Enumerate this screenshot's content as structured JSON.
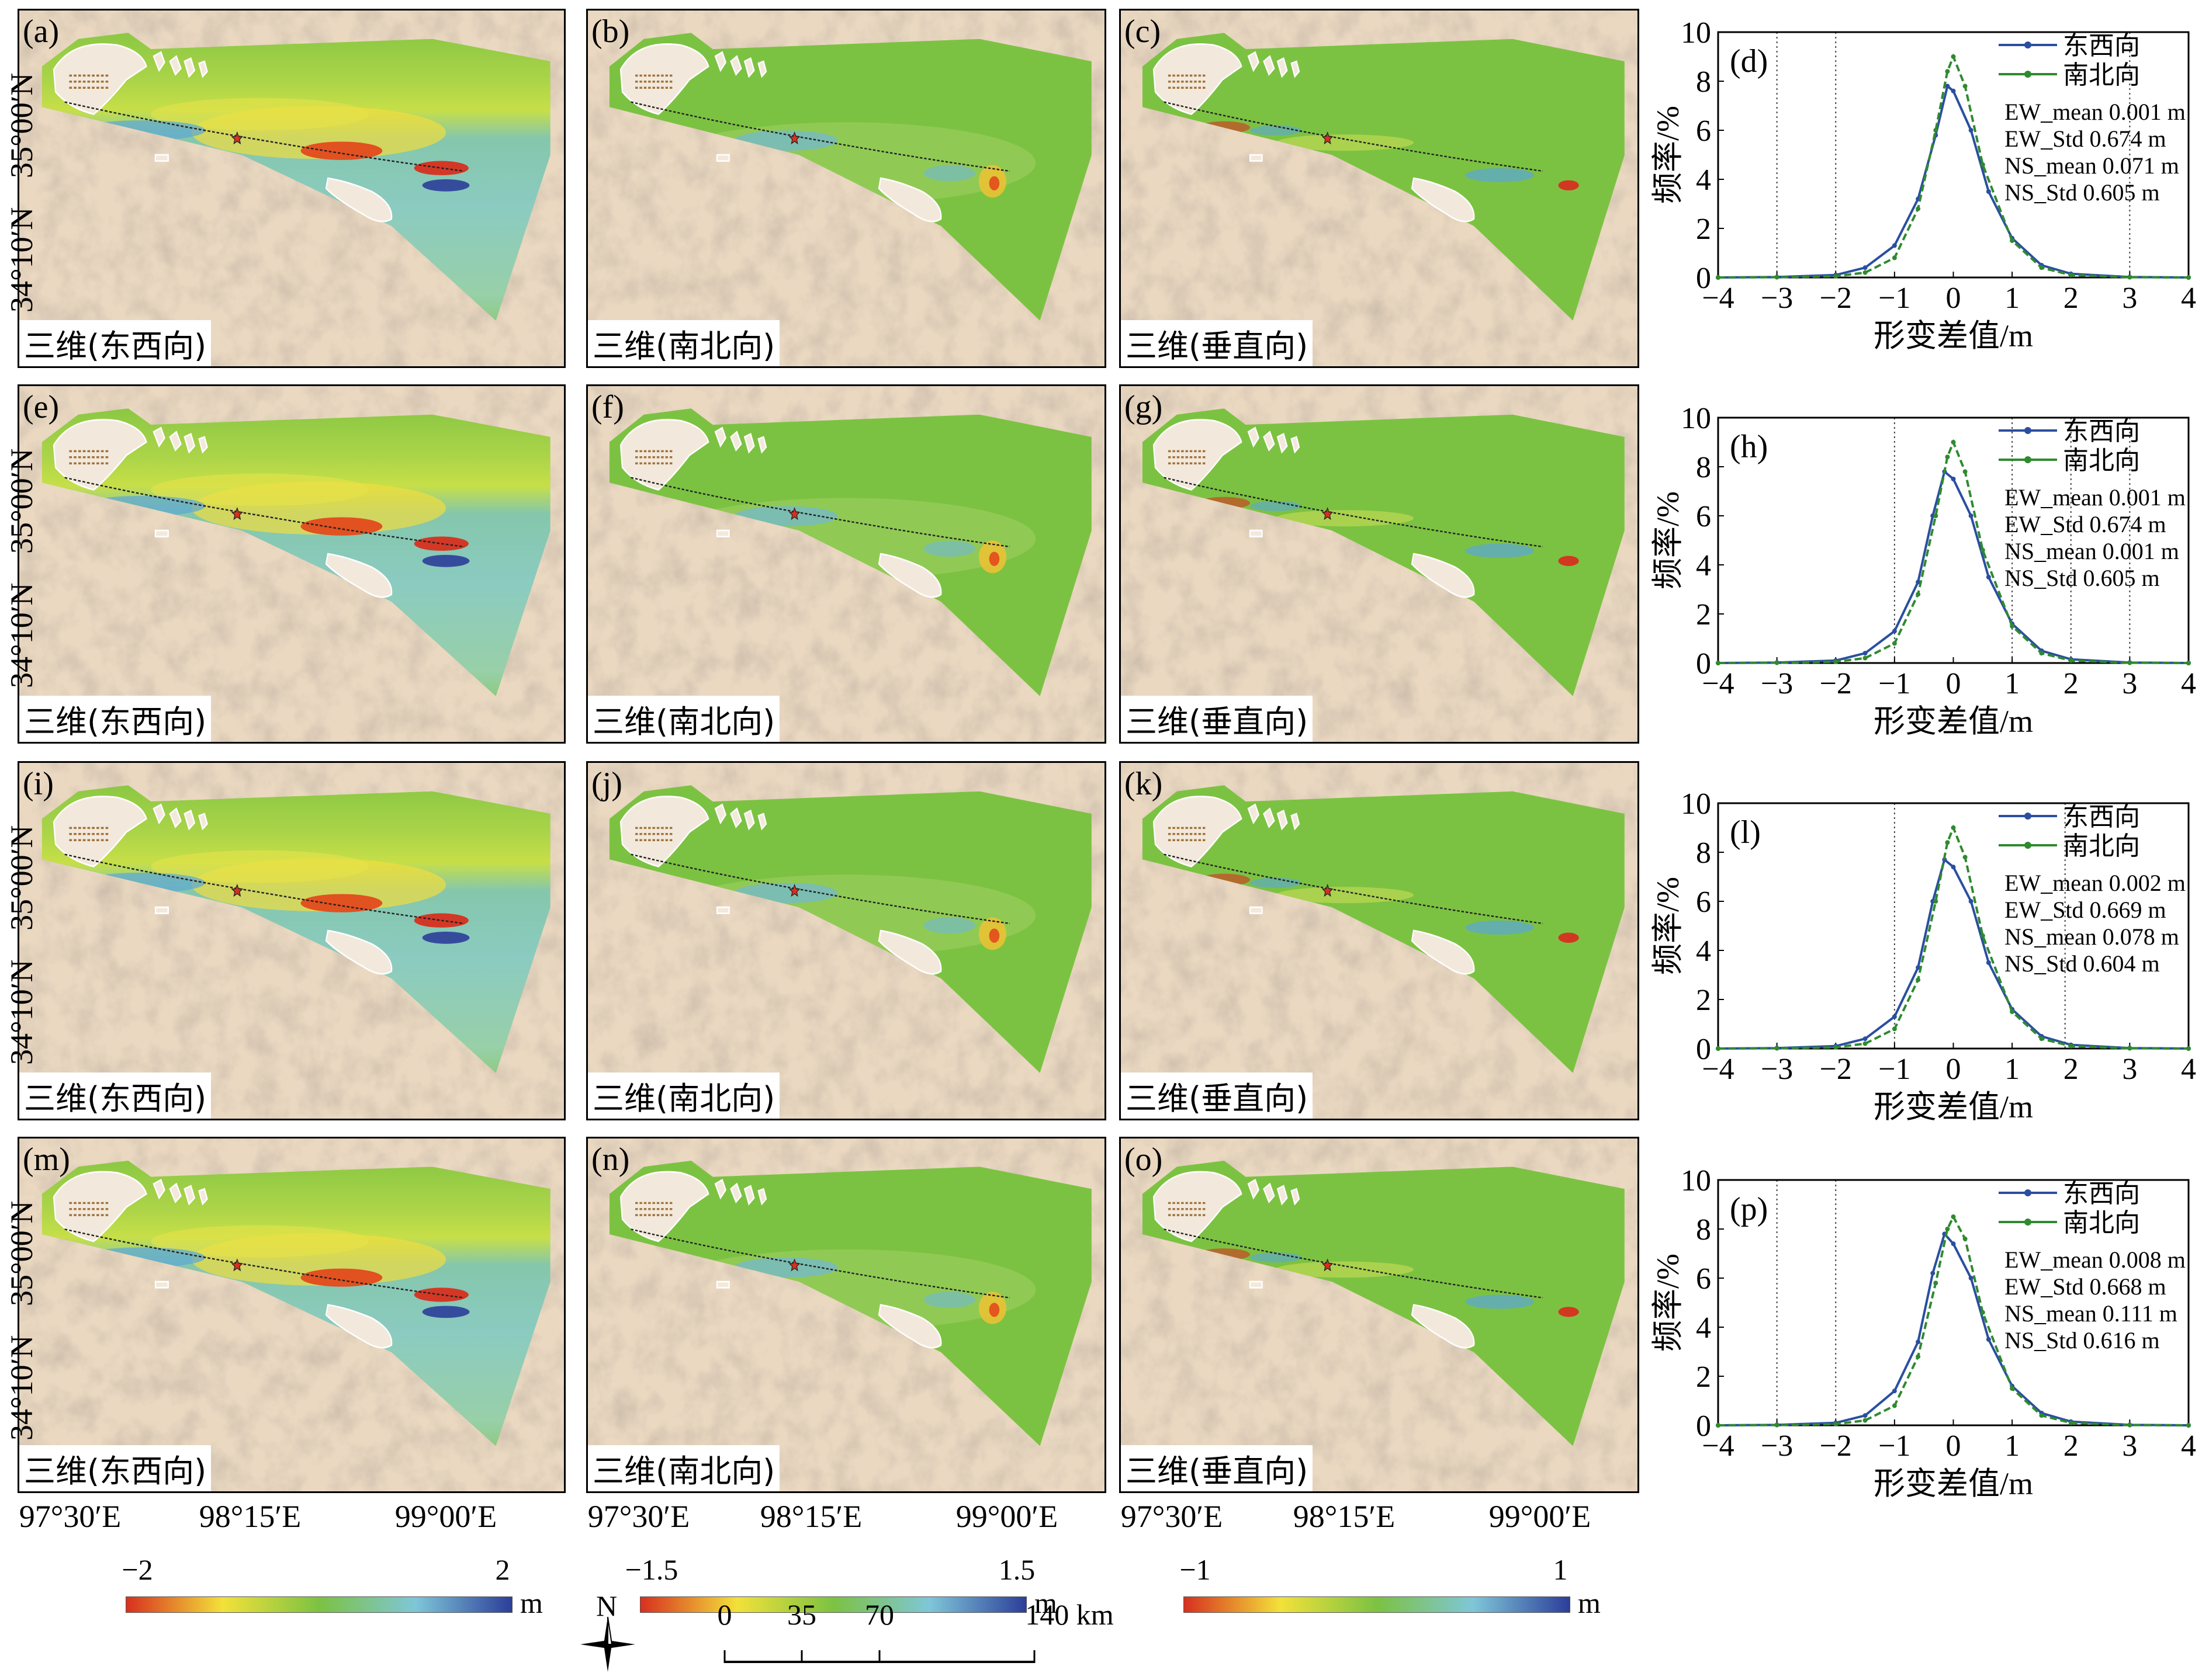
{
  "y_ticks": [
    "35°00′N",
    "34°10′N"
  ],
  "x_ticks": [
    "97°30′E",
    "98°15′E",
    "99°00′E"
  ],
  "maps": [
    {
      "id": "a",
      "label": "(a)",
      "title": "三维(东西向)",
      "comp": "ew"
    },
    {
      "id": "b",
      "label": "(b)",
      "title": "三维(南北向)",
      "comp": "ns"
    },
    {
      "id": "c",
      "label": "(c)",
      "title": "三维(垂直向)",
      "comp": "up"
    },
    {
      "id": "e",
      "label": "(e)",
      "title": "三维(东西向)",
      "comp": "ew"
    },
    {
      "id": "f",
      "label": "(f)",
      "title": "三维(南北向)",
      "comp": "ns"
    },
    {
      "id": "g",
      "label": "(g)",
      "title": "三维(垂直向)",
      "comp": "up"
    },
    {
      "id": "i",
      "label": "(i)",
      "title": "三维(东西向)",
      "comp": "ew"
    },
    {
      "id": "j",
      "label": "(j)",
      "title": "三维(南北向)",
      "comp": "ns"
    },
    {
      "id": "k",
      "label": "(k)",
      "title": "三维(垂直向)",
      "comp": "up"
    },
    {
      "id": "m",
      "label": "(m)",
      "title": "三维(东西向)",
      "comp": "ew"
    },
    {
      "id": "n",
      "label": "(n)",
      "title": "三维(南北向)",
      "comp": "ns"
    },
    {
      "id": "o",
      "label": "(o)",
      "title": "三维(垂直向)",
      "comp": "up"
    }
  ],
  "colorbars": [
    {
      "min": "−2",
      "max": "2",
      "unit": "m"
    },
    {
      "min": "−1.5",
      "max": "1.5",
      "unit": "m"
    },
    {
      "min": "−1",
      "max": "1",
      "unit": "m"
    }
  ],
  "north_label": "N",
  "scale_bar": {
    "ticks": [
      "0",
      "35",
      "70",
      "140 km"
    ]
  },
  "colors": {
    "ew_line": "#2a4fa0",
    "ns_line": "#2f8a2f",
    "map_green": "#7cc242",
    "ramp": [
      "#d7301f",
      "#f3e13a",
      "#7cc242",
      "#7fc6d8",
      "#2c3e9a"
    ]
  },
  "chart_data": [
    {
      "type": "line",
      "panel": "(d)",
      "xlabel": "形变差值/m",
      "ylabel": "频率/%",
      "xlim": [
        -4,
        4
      ],
      "ylim": [
        0,
        10
      ],
      "x_ticks": [
        "−4",
        "−3",
        "−2",
        "−1",
        "0",
        "1",
        "2",
        "3",
        "4"
      ],
      "y_ticks": [
        "0",
        "2",
        "4",
        "6",
        "8",
        "10"
      ],
      "ref_lines": [
        -3,
        -2,
        3
      ],
      "series": [
        {
          "name": "东西向",
          "values": [
            [
              -4,
              0
            ],
            [
              -3,
              0.02
            ],
            [
              -2,
              0.1
            ],
            [
              -1.5,
              0.4
            ],
            [
              -1,
              1.3
            ],
            [
              -0.6,
              3.2
            ],
            [
              -0.3,
              5.8
            ],
            [
              -0.1,
              7.8
            ],
            [
              0,
              7.6
            ],
            [
              0.3,
              6.0
            ],
            [
              0.6,
              3.5
            ],
            [
              1,
              1.6
            ],
            [
              1.5,
              0.5
            ],
            [
              2,
              0.15
            ],
            [
              3,
              0.02
            ],
            [
              4,
              0
            ]
          ]
        },
        {
          "name": "南北向",
          "values": [
            [
              -4,
              0
            ],
            [
              -3,
              0.01
            ],
            [
              -2,
              0.05
            ],
            [
              -1.5,
              0.2
            ],
            [
              -1,
              0.8
            ],
            [
              -0.6,
              2.8
            ],
            [
              -0.3,
              6.0
            ],
            [
              -0.1,
              8.4
            ],
            [
              0,
              9.0
            ],
            [
              0.2,
              7.8
            ],
            [
              0.5,
              4.6
            ],
            [
              1,
              1.5
            ],
            [
              1.5,
              0.4
            ],
            [
              2,
              0.1
            ],
            [
              3,
              0.01
            ],
            [
              4,
              0
            ]
          ]
        }
      ],
      "stats": [
        "EW_mean 0.001 m",
        "EW_Std  0.674 m",
        "NS_mean 0.071 m",
        "NS_Std  0.605 m"
      ]
    },
    {
      "type": "line",
      "panel": "(h)",
      "xlabel": "形变差值/m",
      "ylabel": "频率/%",
      "xlim": [
        -4,
        4
      ],
      "ylim": [
        0,
        10
      ],
      "x_ticks": [
        "−4",
        "−3",
        "−2",
        "−1",
        "0",
        "1",
        "2",
        "3",
        "4"
      ],
      "y_ticks": [
        "0",
        "2",
        "4",
        "6",
        "8",
        "10"
      ],
      "ref_lines": [
        -1,
        1,
        2,
        3
      ],
      "series": [
        {
          "name": "东西向",
          "values": [
            [
              -4,
              0
            ],
            [
              -3,
              0.02
            ],
            [
              -2,
              0.1
            ],
            [
              -1.5,
              0.4
            ],
            [
              -1,
              1.3
            ],
            [
              -0.6,
              3.3
            ],
            [
              -0.35,
              6.0
            ],
            [
              -0.15,
              7.8
            ],
            [
              0,
              7.5
            ],
            [
              0.3,
              6.0
            ],
            [
              0.6,
              3.5
            ],
            [
              1,
              1.6
            ],
            [
              1.5,
              0.5
            ],
            [
              2,
              0.15
            ],
            [
              3,
              0.02
            ],
            [
              4,
              0
            ]
          ]
        },
        {
          "name": "南北向",
          "values": [
            [
              -4,
              0
            ],
            [
              -3,
              0.01
            ],
            [
              -2,
              0.05
            ],
            [
              -1.5,
              0.2
            ],
            [
              -1,
              0.8
            ],
            [
              -0.6,
              2.8
            ],
            [
              -0.3,
              6.0
            ],
            [
              -0.1,
              8.4
            ],
            [
              0,
              9.0
            ],
            [
              0.2,
              7.8
            ],
            [
              0.5,
              4.6
            ],
            [
              1,
              1.5
            ],
            [
              1.5,
              0.4
            ],
            [
              2,
              0.1
            ],
            [
              3,
              0.01
            ],
            [
              4,
              0
            ]
          ]
        }
      ],
      "stats": [
        "EW_mean 0.001 m",
        "EW_Std  0.674 m",
        "NS_mean 0.001 m",
        "NS_Std  0.605 m"
      ]
    },
    {
      "type": "line",
      "panel": "(l)",
      "xlabel": "形变差值/m",
      "ylabel": "频率/%",
      "xlim": [
        -4,
        4
      ],
      "ylim": [
        0,
        10
      ],
      "x_ticks": [
        "−4",
        "−3",
        "−2",
        "−1",
        "0",
        "1",
        "2",
        "3",
        "4"
      ],
      "y_ticks": [
        "0",
        "2",
        "4",
        "6",
        "8",
        "10"
      ],
      "ref_lines": [
        -1,
        1.9
      ],
      "series": [
        {
          "name": "东西向",
          "values": [
            [
              -4,
              0
            ],
            [
              -3,
              0.02
            ],
            [
              -2,
              0.1
            ],
            [
              -1.5,
              0.4
            ],
            [
              -1,
              1.3
            ],
            [
              -0.6,
              3.3
            ],
            [
              -0.35,
              6.0
            ],
            [
              -0.15,
              7.7
            ],
            [
              0,
              7.4
            ],
            [
              0.3,
              6.0
            ],
            [
              0.6,
              3.5
            ],
            [
              1,
              1.6
            ],
            [
              1.5,
              0.5
            ],
            [
              2,
              0.15
            ],
            [
              3,
              0.02
            ],
            [
              4,
              0
            ]
          ]
        },
        {
          "name": "南北向",
          "values": [
            [
              -4,
              0
            ],
            [
              -3,
              0.01
            ],
            [
              -2,
              0.05
            ],
            [
              -1.5,
              0.2
            ],
            [
              -1,
              0.8
            ],
            [
              -0.6,
              2.8
            ],
            [
              -0.3,
              6.0
            ],
            [
              -0.1,
              8.4
            ],
            [
              0,
              9.0
            ],
            [
              0.2,
              7.8
            ],
            [
              0.5,
              4.6
            ],
            [
              1,
              1.5
            ],
            [
              1.5,
              0.4
            ],
            [
              2,
              0.1
            ],
            [
              3,
              0.01
            ],
            [
              4,
              0
            ]
          ]
        }
      ],
      "stats": [
        "EW_mean 0.002 m",
        "EW_Std  0.669 m",
        "NS_mean 0.078 m",
        "NS_Std  0.604 m"
      ]
    },
    {
      "type": "line",
      "panel": "(p)",
      "xlabel": "形变差值/m",
      "ylabel": "频率/%",
      "xlim": [
        -4,
        4
      ],
      "ylim": [
        0,
        10
      ],
      "x_ticks": [
        "−4",
        "−3",
        "−2",
        "−1",
        "0",
        "1",
        "2",
        "3",
        "4"
      ],
      "y_ticks": [
        "0",
        "2",
        "4",
        "6",
        "8",
        "10"
      ],
      "ref_lines": [
        -3,
        -2
      ],
      "series": [
        {
          "name": "东西向",
          "values": [
            [
              -4,
              0
            ],
            [
              -3,
              0.02
            ],
            [
              -2,
              0.1
            ],
            [
              -1.5,
              0.4
            ],
            [
              -1,
              1.4
            ],
            [
              -0.6,
              3.4
            ],
            [
              -0.35,
              6.2
            ],
            [
              -0.15,
              7.8
            ],
            [
              0,
              7.4
            ],
            [
              0.3,
              6.0
            ],
            [
              0.6,
              3.5
            ],
            [
              1,
              1.6
            ],
            [
              1.5,
              0.5
            ],
            [
              2,
              0.15
            ],
            [
              3,
              0.02
            ],
            [
              4,
              0
            ]
          ]
        },
        {
          "name": "南北向",
          "values": [
            [
              -4,
              0
            ],
            [
              -3,
              0.01
            ],
            [
              -2,
              0.05
            ],
            [
              -1.5,
              0.2
            ],
            [
              -1,
              0.8
            ],
            [
              -0.6,
              2.8
            ],
            [
              -0.3,
              5.8
            ],
            [
              -0.1,
              8.0
            ],
            [
              0,
              8.5
            ],
            [
              0.2,
              7.6
            ],
            [
              0.5,
              4.6
            ],
            [
              1,
              1.5
            ],
            [
              1.5,
              0.4
            ],
            [
              2,
              0.1
            ],
            [
              3,
              0.01
            ],
            [
              4,
              0
            ]
          ]
        }
      ],
      "stats": [
        "EW_mean 0.008 m",
        "EW_Std  0.668 m",
        "NS_mean 0.111 m",
        "NS_Std  0.616 m"
      ]
    }
  ]
}
